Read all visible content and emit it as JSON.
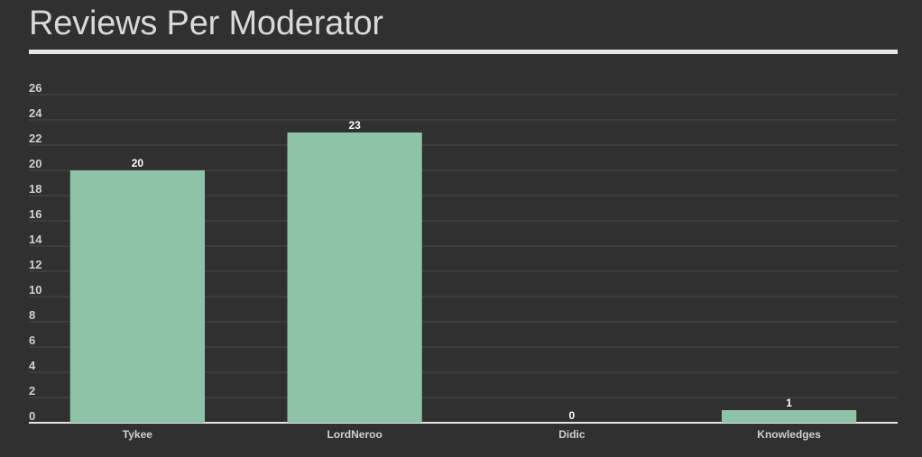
{
  "page": {
    "title": "Reviews Per Moderator"
  },
  "colors": {
    "background": "#303030",
    "bar": "#8ec3a7",
    "grid": "#4a4a4a",
    "axis": "#e6e6e6",
    "text": "#d0d0d0"
  },
  "chart_data": {
    "type": "bar",
    "title": "Reviews Per Moderator",
    "xlabel": "",
    "ylabel": "",
    "categories": [
      "Tykee",
      "LordNeroo",
      "Didic",
      "Knowledges"
    ],
    "values": [
      20,
      23,
      0,
      1
    ],
    "ylim": [
      0,
      26
    ],
    "yticks": [
      0,
      2,
      4,
      6,
      8,
      10,
      12,
      14,
      16,
      18,
      20,
      22,
      24,
      26
    ],
    "grid": true,
    "legend": "none",
    "data_labels": true
  }
}
